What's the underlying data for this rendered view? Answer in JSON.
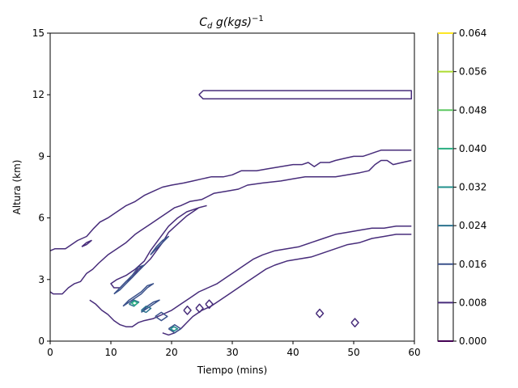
{
  "chart_data": {
    "type": "contour",
    "title": "C_d g(kgs)^-1",
    "title_parts": {
      "main": "C",
      "sub": "d",
      "middle": " g(kgs)",
      "sup": "−1"
    },
    "xlabel": "Tiempo (mins)",
    "ylabel": "Altura (km)",
    "xlim": [
      0,
      60
    ],
    "ylim": [
      0,
      15
    ],
    "xticks": [
      0,
      10,
      20,
      30,
      40,
      50,
      60
    ],
    "yticks": [
      0,
      3,
      6,
      9,
      12,
      15
    ],
    "grid": false,
    "colorbar": {
      "levels": [
        0.0,
        0.008,
        0.016,
        0.024,
        0.032,
        0.04,
        0.048,
        0.056,
        0.064
      ],
      "labels": [
        "0.000",
        "0.008",
        "0.016",
        "0.024",
        "0.032",
        "0.040",
        "0.048",
        "0.056",
        "0.064"
      ],
      "colors": [
        "#440154",
        "#472c7a",
        "#3b528b",
        "#2c728e",
        "#21918c",
        "#28ae80",
        "#5ec962",
        "#addc30",
        "#fde725"
      ]
    },
    "contours": [
      {
        "level": 0.008,
        "name": "upper-band",
        "points": [
          [
            24.5,
            12.0
          ],
          [
            25.2,
            12.2
          ],
          [
            59.5,
            12.2
          ],
          [
            59.5,
            11.8
          ],
          [
            25.2,
            11.8
          ],
          [
            24.5,
            12.0
          ]
        ]
      },
      {
        "level": 0.008,
        "name": "main-upper-boundary",
        "points": [
          [
            0,
            4.4
          ],
          [
            0.8,
            4.5
          ],
          [
            2.5,
            4.5
          ],
          [
            3.5,
            4.7
          ],
          [
            4.5,
            4.9
          ],
          [
            6,
            5.1
          ],
          [
            7.2,
            5.5
          ],
          [
            8.2,
            5.8
          ],
          [
            9.5,
            6.0
          ],
          [
            11,
            6.3
          ],
          [
            12.5,
            6.6
          ],
          [
            14,
            6.8
          ],
          [
            15.5,
            7.1
          ],
          [
            17,
            7.3
          ],
          [
            18.5,
            7.5
          ],
          [
            20,
            7.6
          ],
          [
            22,
            7.7
          ],
          [
            23.5,
            7.8
          ],
          [
            25,
            7.9
          ],
          [
            26.5,
            8.0
          ],
          [
            28.5,
            8.0
          ],
          [
            30,
            8.1
          ],
          [
            31.5,
            8.3
          ],
          [
            34,
            8.3
          ],
          [
            36,
            8.4
          ],
          [
            38,
            8.5
          ],
          [
            40,
            8.6
          ],
          [
            41.5,
            8.6
          ],
          [
            42.5,
            8.7
          ],
          [
            43.5,
            8.5
          ],
          [
            44.5,
            8.7
          ],
          [
            46,
            8.7
          ],
          [
            47,
            8.8
          ],
          [
            48.5,
            8.9
          ],
          [
            50,
            9.0
          ],
          [
            51.5,
            9.0
          ],
          [
            52.5,
            9.1
          ],
          [
            53.5,
            9.2
          ],
          [
            54.5,
            9.3
          ],
          [
            59.5,
            9.3
          ]
        ]
      },
      {
        "level": 0.008,
        "name": "inner-loop",
        "points": [
          [
            25.8,
            6.6
          ],
          [
            24.5,
            6.5
          ],
          [
            22.5,
            6.3
          ],
          [
            21,
            6.0
          ],
          [
            19.5,
            5.6
          ],
          [
            18.5,
            5.2
          ],
          [
            17.5,
            4.8
          ],
          [
            16.5,
            4.4
          ],
          [
            15.5,
            3.9
          ],
          [
            14,
            3.5
          ],
          [
            12.5,
            3.2
          ],
          [
            11,
            3.0
          ],
          [
            10,
            2.8
          ],
          [
            10.5,
            2.6
          ],
          [
            11.5,
            2.6
          ],
          [
            12.5,
            2.9
          ],
          [
            13.5,
            3.1
          ],
          [
            14.5,
            3.5
          ],
          [
            15.5,
            3.7
          ],
          [
            16.5,
            4.0
          ],
          [
            17.5,
            4.4
          ],
          [
            18.5,
            4.8
          ],
          [
            19.5,
            5.3
          ],
          [
            21,
            5.7
          ],
          [
            22.5,
            6.1
          ],
          [
            24.5,
            6.5
          ],
          [
            25.8,
            6.6
          ]
        ]
      },
      {
        "level": 0.008,
        "name": "main-lower-boundary",
        "points": [
          [
            0,
            2.4
          ],
          [
            0.5,
            2.3
          ],
          [
            2,
            2.3
          ],
          [
            3,
            2.6
          ],
          [
            4,
            2.8
          ],
          [
            5,
            2.9
          ],
          [
            6,
            3.3
          ],
          [
            7,
            3.5
          ],
          [
            8,
            3.8
          ],
          [
            9.5,
            4.2
          ],
          [
            11,
            4.5
          ],
          [
            12.5,
            4.8
          ],
          [
            14,
            5.2
          ],
          [
            15,
            5.4
          ],
          [
            16.5,
            5.7
          ],
          [
            18,
            6.0
          ],
          [
            19.5,
            6.3
          ],
          [
            20.5,
            6.5
          ],
          [
            21.5,
            6.6
          ],
          [
            23,
            6.8
          ],
          [
            25,
            6.9
          ],
          [
            27,
            7.2
          ],
          [
            29,
            7.3
          ],
          [
            31,
            7.4
          ],
          [
            32.5,
            7.6
          ],
          [
            35,
            7.7
          ],
          [
            38,
            7.8
          ],
          [
            40,
            7.9
          ],
          [
            42,
            8.0
          ],
          [
            43.5,
            8.0
          ],
          [
            45,
            8.0
          ],
          [
            47,
            8.0
          ],
          [
            49,
            8.1
          ],
          [
            51,
            8.2
          ],
          [
            52.5,
            8.3
          ],
          [
            53.5,
            8.6
          ],
          [
            54.5,
            8.8
          ],
          [
            55.5,
            8.8
          ],
          [
            56.5,
            8.6
          ],
          [
            58,
            8.7
          ],
          [
            59.5,
            8.8
          ]
        ]
      },
      {
        "level": 0.008,
        "name": "main-bottom-boundary",
        "points": [
          [
            6.5,
            2.0
          ],
          [
            7.5,
            1.8
          ],
          [
            8.5,
            1.5
          ],
          [
            9.5,
            1.3
          ],
          [
            10.5,
            1.0
          ],
          [
            11.5,
            0.8
          ],
          [
            12.5,
            0.7
          ],
          [
            13.5,
            0.7
          ],
          [
            14.5,
            0.9
          ],
          [
            15.5,
            1.0
          ],
          [
            17,
            1.1
          ],
          [
            18.5,
            1.3
          ],
          [
            20,
            1.5
          ],
          [
            21.5,
            1.8
          ],
          [
            23,
            2.1
          ],
          [
            24.5,
            2.4
          ],
          [
            26,
            2.6
          ],
          [
            27.5,
            2.8
          ],
          [
            29,
            3.1
          ],
          [
            30.5,
            3.4
          ],
          [
            32,
            3.7
          ],
          [
            33.5,
            4.0
          ],
          [
            35,
            4.2
          ],
          [
            37,
            4.4
          ],
          [
            39,
            4.5
          ],
          [
            41,
            4.6
          ],
          [
            43,
            4.8
          ],
          [
            45,
            5.0
          ],
          [
            47,
            5.2
          ],
          [
            49,
            5.3
          ],
          [
            51,
            5.4
          ],
          [
            53,
            5.5
          ],
          [
            55,
            5.5
          ],
          [
            57,
            5.6
          ],
          [
            59.5,
            5.6
          ]
        ]
      },
      {
        "level": 0.008,
        "name": "lowest-boundary",
        "points": [
          [
            18.5,
            0.4
          ],
          [
            19.5,
            0.3
          ],
          [
            20.5,
            0.4
          ],
          [
            21.5,
            0.6
          ],
          [
            22.5,
            0.9
          ],
          [
            23.5,
            1.2
          ],
          [
            25,
            1.5
          ],
          [
            26.5,
            1.7
          ],
          [
            28,
            2.0
          ],
          [
            29.5,
            2.3
          ],
          [
            31,
            2.6
          ],
          [
            32.5,
            2.9
          ],
          [
            34,
            3.2
          ],
          [
            35.5,
            3.5
          ],
          [
            37,
            3.7
          ],
          [
            39,
            3.9
          ],
          [
            41,
            4.0
          ],
          [
            43,
            4.1
          ],
          [
            45,
            4.3
          ],
          [
            47,
            4.5
          ],
          [
            49,
            4.7
          ],
          [
            51,
            4.8
          ],
          [
            53,
            5.0
          ],
          [
            55,
            5.1
          ],
          [
            57,
            5.2
          ],
          [
            59.5,
            5.2
          ]
        ]
      },
      {
        "level": 0.008,
        "name": "small-loop-44",
        "points": [
          [
            43.8,
            1.35
          ],
          [
            44.4,
            1.55
          ],
          [
            45.0,
            1.35
          ],
          [
            44.4,
            1.15
          ],
          [
            43.8,
            1.35
          ]
        ]
      },
      {
        "level": 0.008,
        "name": "small-loop-50",
        "points": [
          [
            49.6,
            0.9
          ],
          [
            50.2,
            1.1
          ],
          [
            50.8,
            0.9
          ],
          [
            50.2,
            0.7
          ],
          [
            49.6,
            0.9
          ]
        ]
      },
      {
        "level": 0.008,
        "name": "small-loop-22",
        "points": [
          [
            22.0,
            1.5
          ],
          [
            22.6,
            1.7
          ],
          [
            23.2,
            1.5
          ],
          [
            22.6,
            1.3
          ],
          [
            22.0,
            1.5
          ]
        ]
      },
      {
        "level": 0.008,
        "name": "small-loop-24",
        "points": [
          [
            24.0,
            1.6
          ],
          [
            24.6,
            1.8
          ],
          [
            25.2,
            1.6
          ],
          [
            24.6,
            1.4
          ],
          [
            24.0,
            1.6
          ]
        ]
      },
      {
        "level": 0.008,
        "name": "small-loop-25",
        "points": [
          [
            25.6,
            1.8
          ],
          [
            26.2,
            2.0
          ],
          [
            26.8,
            1.8
          ],
          [
            26.2,
            1.6
          ],
          [
            25.6,
            1.8
          ]
        ]
      },
      {
        "level": 0.016,
        "name": "ridge-upper",
        "points": [
          [
            10.5,
            2.3
          ],
          [
            11.5,
            2.5
          ],
          [
            12.5,
            2.8
          ],
          [
            13.5,
            3.1
          ],
          [
            14.5,
            3.4
          ],
          [
            15.5,
            3.7
          ],
          [
            14.5,
            3.6
          ],
          [
            13.5,
            3.2
          ],
          [
            12.5,
            2.9
          ],
          [
            11.5,
            2.6
          ],
          [
            10.5,
            2.3
          ]
        ]
      },
      {
        "level": 0.016,
        "name": "ridge-middle",
        "points": [
          [
            12.0,
            1.7
          ],
          [
            13.0,
            1.9
          ],
          [
            14.0,
            2.1
          ],
          [
            15.0,
            2.3
          ],
          [
            16.0,
            2.6
          ],
          [
            17.0,
            2.8
          ],
          [
            16.0,
            2.7
          ],
          [
            15.0,
            2.4
          ],
          [
            14.0,
            2.2
          ],
          [
            13.0,
            2.0
          ],
          [
            12.0,
            1.7
          ]
        ]
      },
      {
        "level": 0.016,
        "name": "ridge-lower",
        "points": [
          [
            15.0,
            1.4
          ],
          [
            16.0,
            1.6
          ],
          [
            17.0,
            1.8
          ],
          [
            18.0,
            2.0
          ],
          [
            17.0,
            1.9
          ],
          [
            16.0,
            1.7
          ],
          [
            15.0,
            1.4
          ]
        ]
      },
      {
        "level": 0.016,
        "name": "ridge-top",
        "points": [
          [
            16.5,
            4.2
          ],
          [
            17.5,
            4.5
          ],
          [
            18.5,
            4.8
          ],
          [
            19.5,
            5.1
          ],
          [
            18.5,
            4.9
          ],
          [
            17.5,
            4.6
          ],
          [
            16.5,
            4.2
          ]
        ]
      },
      {
        "level": 0.016,
        "name": "blob-20",
        "points": [
          [
            19.5,
            0.6
          ],
          [
            20.5,
            0.8
          ],
          [
            21.5,
            0.6
          ],
          [
            20.5,
            0.4
          ],
          [
            19.5,
            0.6
          ]
        ]
      },
      {
        "level": 0.016,
        "name": "blob-18",
        "points": [
          [
            17.3,
            1.2
          ],
          [
            18.3,
            1.4
          ],
          [
            19.3,
            1.2
          ],
          [
            18.3,
            1.0
          ],
          [
            17.3,
            1.2
          ]
        ]
      },
      {
        "level": 0.024,
        "name": "core-1",
        "points": [
          [
            13.0,
            1.8
          ],
          [
            13.8,
            2.0
          ],
          [
            14.6,
            1.9
          ],
          [
            13.8,
            1.7
          ],
          [
            13.0,
            1.8
          ]
        ]
      },
      {
        "level": 0.024,
        "name": "core-2",
        "points": [
          [
            15.0,
            1.5
          ],
          [
            15.8,
            1.7
          ],
          [
            16.6,
            1.6
          ],
          [
            15.8,
            1.4
          ],
          [
            15.0,
            1.5
          ]
        ]
      },
      {
        "level": 0.032,
        "name": "core-3",
        "points": [
          [
            19.8,
            0.6
          ],
          [
            20.4,
            0.7
          ],
          [
            21.0,
            0.6
          ],
          [
            20.4,
            0.5
          ],
          [
            19.8,
            0.6
          ]
        ]
      },
      {
        "level": 0.04,
        "name": "core-4",
        "points": [
          [
            13.4,
            1.85
          ],
          [
            13.9,
            1.95
          ],
          [
            14.4,
            1.85
          ],
          [
            13.9,
            1.75
          ],
          [
            13.4,
            1.85
          ]
        ]
      },
      {
        "level": 0.008,
        "name": "small-left",
        "points": [
          [
            5.2,
            4.6
          ],
          [
            6.0,
            4.8
          ],
          [
            6.8,
            4.9
          ],
          [
            6.0,
            4.7
          ],
          [
            5.2,
            4.6
          ]
        ]
      }
    ]
  }
}
